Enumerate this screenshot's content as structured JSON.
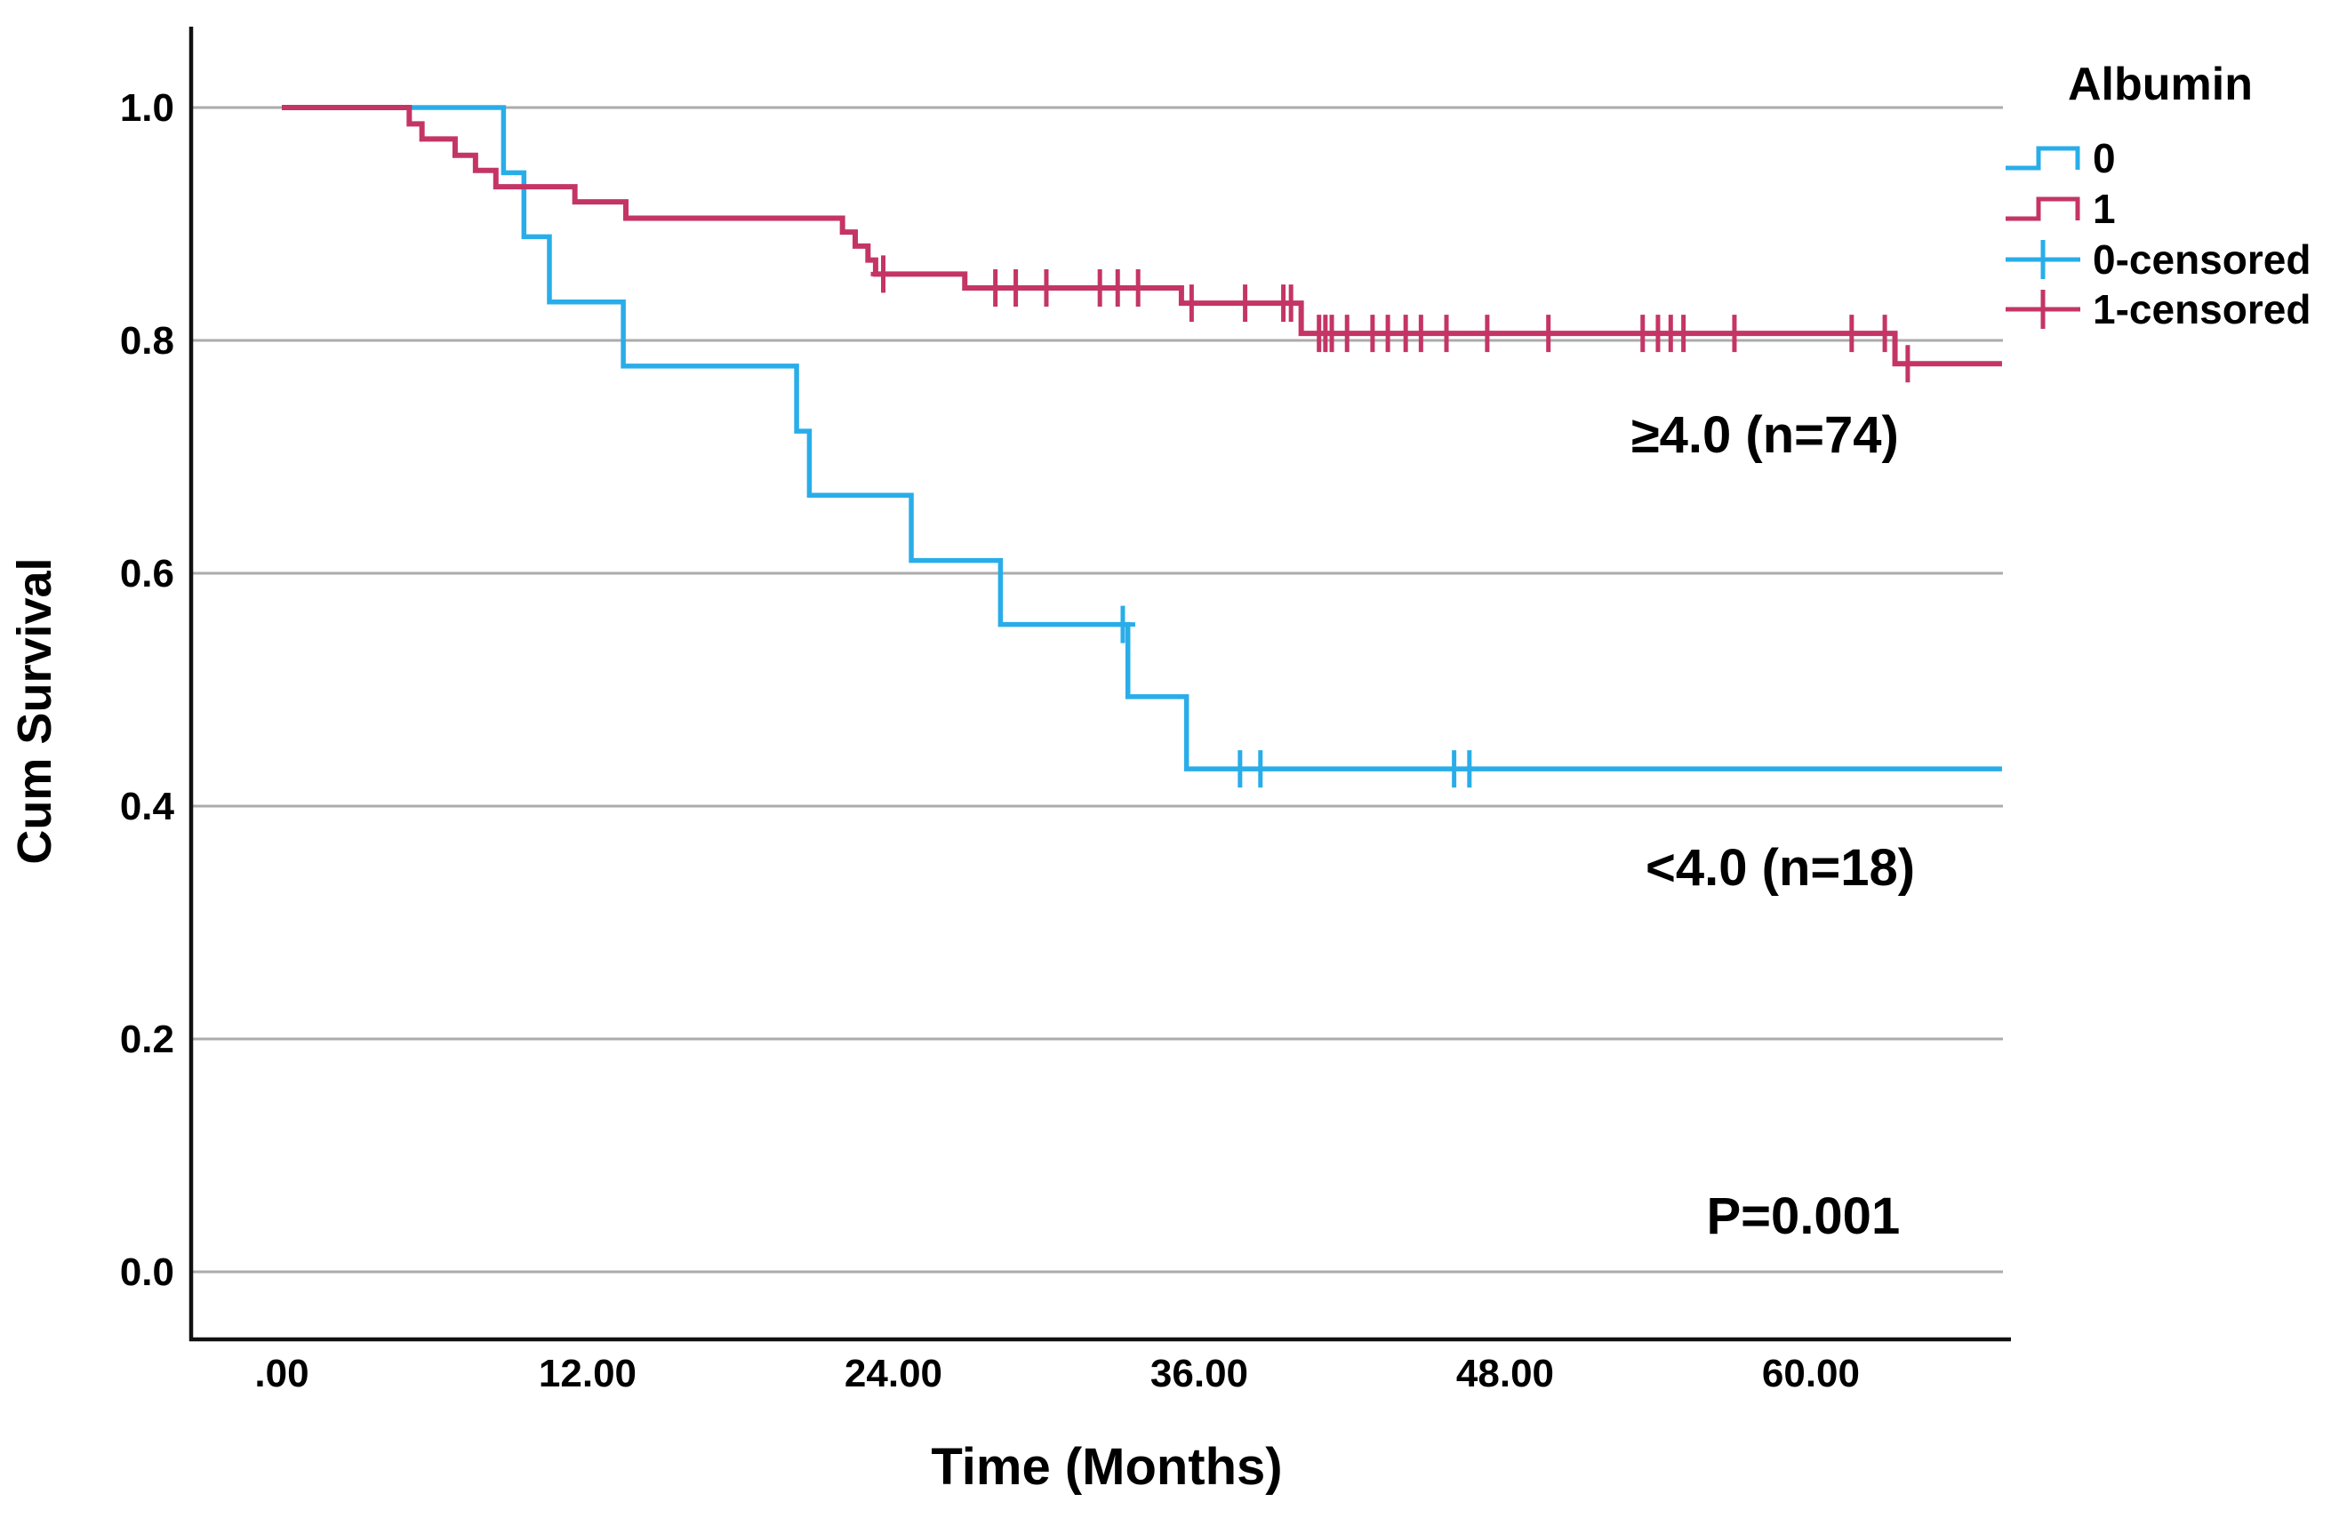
{
  "colors": {
    "blue": "#29ADE9",
    "pink": "#C43566",
    "grid": "#ABABAB",
    "axis": "#111111",
    "text": "#000000",
    "background": "#FFFFFF"
  },
  "chart_data": {
    "type": "line",
    "subtype": "kaplan-meier-step-plot",
    "title": "",
    "xlabel": "Time (Months)",
    "ylabel": "Cum Survival",
    "grid": "horizontal",
    "xlim": [
      -3.5,
      68
    ],
    "ylim": [
      -0.06,
      1.06
    ],
    "x_ticks": [
      {
        "label": ".00",
        "value": 0
      },
      {
        "label": "12.00",
        "value": 12
      },
      {
        "label": "24.00",
        "value": 24
      },
      {
        "label": "36.00",
        "value": 36
      },
      {
        "label": "48.00",
        "value": 48
      },
      {
        "label": "60.00",
        "value": 60
      }
    ],
    "y_ticks": [
      {
        "label": "1.0",
        "value": 1.0
      },
      {
        "label": "0.8",
        "value": 0.8
      },
      {
        "label": "0.6",
        "value": 0.6
      },
      {
        "label": "0.4",
        "value": 0.4
      },
      {
        "label": "0.2",
        "value": 0.2
      },
      {
        "label": "0.0",
        "value": 0.0
      }
    ],
    "legend": {
      "title": "Albumin",
      "position": "top-right",
      "entries": [
        {
          "label": "0",
          "color_key": "blue",
          "type": "step"
        },
        {
          "label": "1",
          "color_key": "pink",
          "type": "step"
        },
        {
          "label": "0-censored",
          "color_key": "blue",
          "type": "censor"
        },
        {
          "label": "1-censored",
          "color_key": "pink",
          "type": "censor"
        }
      ]
    },
    "series": [
      {
        "name": "0",
        "group_label": "<4.0 (n=18)",
        "color_key": "blue",
        "end_time": 67.5,
        "steps": [
          [
            0,
            1.0
          ],
          [
            8.7,
            0.944
          ],
          [
            9.5,
            0.889
          ],
          [
            10.5,
            0.833
          ],
          [
            13.4,
            0.778
          ],
          [
            20.2,
            0.722
          ],
          [
            20.7,
            0.667
          ],
          [
            24.7,
            0.611
          ],
          [
            28.2,
            0.556
          ],
          [
            33.2,
            0.494
          ],
          [
            35.5,
            0.432
          ]
        ],
        "censored": [
          [
            33.0,
            0.556
          ],
          [
            37.6,
            0.432
          ],
          [
            38.4,
            0.432
          ],
          [
            46.0,
            0.432
          ],
          [
            46.6,
            0.432
          ]
        ]
      },
      {
        "name": "1",
        "group_label": "≥4.0 (n=74)",
        "color_key": "pink",
        "end_time": 67.5,
        "steps": [
          [
            0,
            1.0
          ],
          [
            5.0,
            0.986
          ],
          [
            5.5,
            0.973
          ],
          [
            6.8,
            0.959
          ],
          [
            7.6,
            0.946
          ],
          [
            8.4,
            0.932
          ],
          [
            11.5,
            0.919
          ],
          [
            13.5,
            0.905
          ],
          [
            22.0,
            0.893
          ],
          [
            22.5,
            0.881
          ],
          [
            23.0,
            0.869
          ],
          [
            23.3,
            0.857
          ],
          [
            26.8,
            0.845
          ],
          [
            35.3,
            0.832
          ],
          [
            40.0,
            0.806
          ],
          [
            63.3,
            0.78
          ]
        ],
        "censored": [
          [
            23.6,
            0.857
          ],
          [
            28.0,
            0.845
          ],
          [
            28.8,
            0.845
          ],
          [
            30.0,
            0.845
          ],
          [
            32.1,
            0.845
          ],
          [
            32.8,
            0.845
          ],
          [
            33.6,
            0.845
          ],
          [
            35.7,
            0.832
          ],
          [
            37.8,
            0.832
          ],
          [
            39.3,
            0.832
          ],
          [
            39.6,
            0.832
          ],
          [
            40.7,
            0.806
          ],
          [
            40.95,
            0.806
          ],
          [
            41.2,
            0.806
          ],
          [
            41.8,
            0.806
          ],
          [
            42.8,
            0.806
          ],
          [
            43.4,
            0.806
          ],
          [
            44.1,
            0.806
          ],
          [
            44.7,
            0.806
          ],
          [
            45.7,
            0.806
          ],
          [
            47.3,
            0.806
          ],
          [
            49.7,
            0.806
          ],
          [
            53.4,
            0.806
          ],
          [
            54.0,
            0.806
          ],
          [
            54.5,
            0.806
          ],
          [
            55.0,
            0.806
          ],
          [
            57.0,
            0.806
          ],
          [
            61.6,
            0.806
          ],
          [
            62.9,
            0.806
          ],
          [
            63.8,
            0.78
          ]
        ]
      }
    ],
    "annotations": [
      {
        "text": "≥4.0 (n=74)",
        "t": 58.2,
        "v": 0.72
      },
      {
        "text": "<4.0 (n=18)",
        "t": 58.8,
        "v": 0.348
      },
      {
        "text": "P=0.001",
        "t": 59.7,
        "v": 0.049
      }
    ]
  }
}
